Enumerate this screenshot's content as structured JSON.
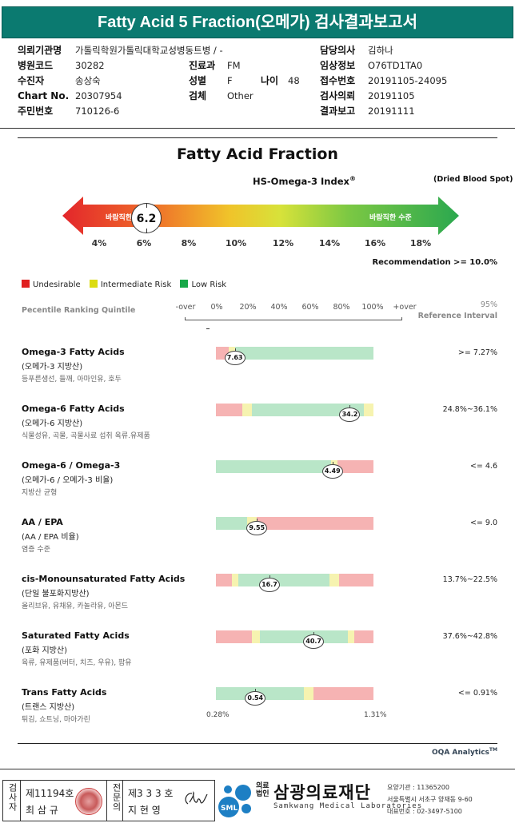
{
  "header": {
    "title": "Fatty Acid 5 Fraction(오메가) 검사결과보고서"
  },
  "patient": {
    "institution_label": "의뢰기관명",
    "institution_value": "가톨릭학원가톨릭대학교성병동트병 / -",
    "doctor_label": "담당의사",
    "doctor_value": "김하나",
    "hospital_code_label": "병원코드",
    "hospital_code_value": "30282",
    "dept_label": "진료과",
    "dept_value": "FM",
    "clinical_label": "임상정보",
    "clinical_value": "O76TD1TA0",
    "name_label": "수진자",
    "name_value": "송상숙",
    "sex_label": "성별",
    "sex_value": "F",
    "age_label": "나이",
    "age_value": "48",
    "receipt_label": "접수번호",
    "receipt_value": "20191105-24095",
    "chart_label": "Chart No.",
    "chart_value": "20307954",
    "specimen_label": "검체",
    "specimen_value": "Other",
    "request_label": "검사의뢰",
    "request_value": "20191105",
    "rrn_label": "주민번호",
    "rrn_value": "710126-6",
    "report_label": "결과보고",
    "report_value": "20191111"
  },
  "index": {
    "title": "Fatty Acid Fraction",
    "subtitle": "HS-Omega-3 Index",
    "subtitle_sup": "®",
    "specimen_note": "(Dried Blood Spot)",
    "left_label": "바람직한 수준",
    "right_label": "바람직한 수준",
    "value": "6.2",
    "ticks": [
      "4%",
      "6%",
      "8%",
      "10%",
      "12%",
      "14%",
      "16%",
      "18%"
    ],
    "recommendation": "Recommendation  >= 10.0%"
  },
  "legend": [
    {
      "label": "Undesirable",
      "color": "#e02020"
    },
    {
      "label": "Intermediate Risk",
      "color": "#dcdc10"
    },
    {
      "label": "Low Risk",
      "color": "#18a848"
    }
  ],
  "percentile": {
    "label": "Pecentile Ranking Quintile",
    "ticks": [
      "-over",
      "0%",
      "20%",
      "40%",
      "60%",
      "80%",
      "100%",
      "+over"
    ],
    "ref_top": "95%",
    "ref_bottom": "Reference Interval"
  },
  "colors": {
    "red": "#f6b3b3",
    "yellow": "#f6f3b0",
    "green": "#b9e6c8",
    "accent": "#0b7a70"
  },
  "chart_data": {
    "type": "bar",
    "title": "Fatty Acid Fraction",
    "xlabel": "Pecentile Ranking Quintile",
    "xlim": [
      "-over",
      "+over"
    ],
    "rows": [
      {
        "name": "Omega-3 Fatty Acids",
        "kor": "(오메가-3 지방산)",
        "desc": "등푸른생선, 들깨, 아마인유, 호두",
        "value": "7.63",
        "ref": ">= 7.27%",
        "segments": [
          [
            "red",
            0,
            8
          ],
          [
            "yellow",
            8,
            12
          ],
          [
            "green",
            12,
            100
          ]
        ],
        "marker": 12
      },
      {
        "name": "Omega-6 Fatty Acids",
        "kor": "(오메가-6 지방산)",
        "desc": "식물성유, 곡물, 곡물사료 섭취 육류.유제품",
        "value": "34.2",
        "ref": "24.8%~36.1%",
        "segments": [
          [
            "red",
            0,
            17
          ],
          [
            "yellow",
            17,
            23
          ],
          [
            "green",
            23,
            94
          ],
          [
            "yellow",
            94,
            100
          ]
        ],
        "marker": 85
      },
      {
        "name": "Omega-6 / Omega-3",
        "kor": "(오메가-6 / 오메가-3 비율)",
        "desc": "지방산 균형",
        "value": "4.49",
        "ref": "<= 4.6",
        "segments": [
          [
            "green",
            0,
            73
          ],
          [
            "yellow",
            73,
            77
          ],
          [
            "red",
            77,
            100
          ]
        ],
        "marker": 74
      },
      {
        "name": "AA / EPA",
        "kor": "(AA / EPA 비율)",
        "desc": "염증 수준",
        "value": "9.55",
        "ref": "<= 9.0",
        "segments": [
          [
            "green",
            0,
            20
          ],
          [
            "yellow",
            20,
            26
          ],
          [
            "red",
            26,
            100
          ]
        ],
        "marker": 26
      },
      {
        "name": "cis-Monounsaturated Fatty Acids",
        "kor": "(단일 불포화지방산)",
        "desc": "올리브유, 유채유, 카놀라유, 아몬드",
        "value": "16.7",
        "ref": "13.7%~22.5%",
        "segments": [
          [
            "red",
            0,
            10
          ],
          [
            "yellow",
            10,
            14
          ],
          [
            "green",
            14,
            72
          ],
          [
            "yellow",
            72,
            78
          ],
          [
            "red",
            78,
            100
          ]
        ],
        "marker": 34
      },
      {
        "name": "Saturated Fatty Acids",
        "kor": "(포화 지방산)",
        "desc": "육류, 유제품(버터, 치즈, 우유), 팜유",
        "value": "40.7",
        "ref": "37.6%~42.8%",
        "segments": [
          [
            "red",
            0,
            23
          ],
          [
            "yellow",
            23,
            28
          ],
          [
            "green",
            28,
            84
          ],
          [
            "yellow",
            84,
            88
          ],
          [
            "red",
            88,
            100
          ]
        ],
        "marker": 62
      },
      {
        "name": "Trans Fatty Acids",
        "kor": "(트랜스 지방산)",
        "desc": "튀김, 쇼트닝, 마아가린",
        "value": "0.54",
        "ref": "<= 0.91%",
        "segments": [
          [
            "green",
            0,
            56
          ],
          [
            "yellow",
            56,
            62
          ],
          [
            "red",
            62,
            100
          ]
        ],
        "marker": 25
      }
    ]
  },
  "trans_range": {
    "min": "0.28%",
    "max": "1.31%"
  },
  "footer": {
    "oqa": "OQA Analytics",
    "oqa_sup": "TM",
    "inspector_label": "검사자",
    "inspector_no": "제11194호",
    "inspector_name": "최 삼 규",
    "specialist_label": "전문의",
    "specialist_no": "제3 3 3 호",
    "specialist_name": "지 현 영",
    "org_tag": "의료법인",
    "org_name": "삼광의료재단",
    "org_en": "Samkwang Medical Laboratories",
    "org_code": "요양기관 : 11365200",
    "org_addr": "서울특별시 서초구 양재동 9-60",
    "org_tel": "대표번호 : 02-3497-5100",
    "logo_text": "SML"
  }
}
